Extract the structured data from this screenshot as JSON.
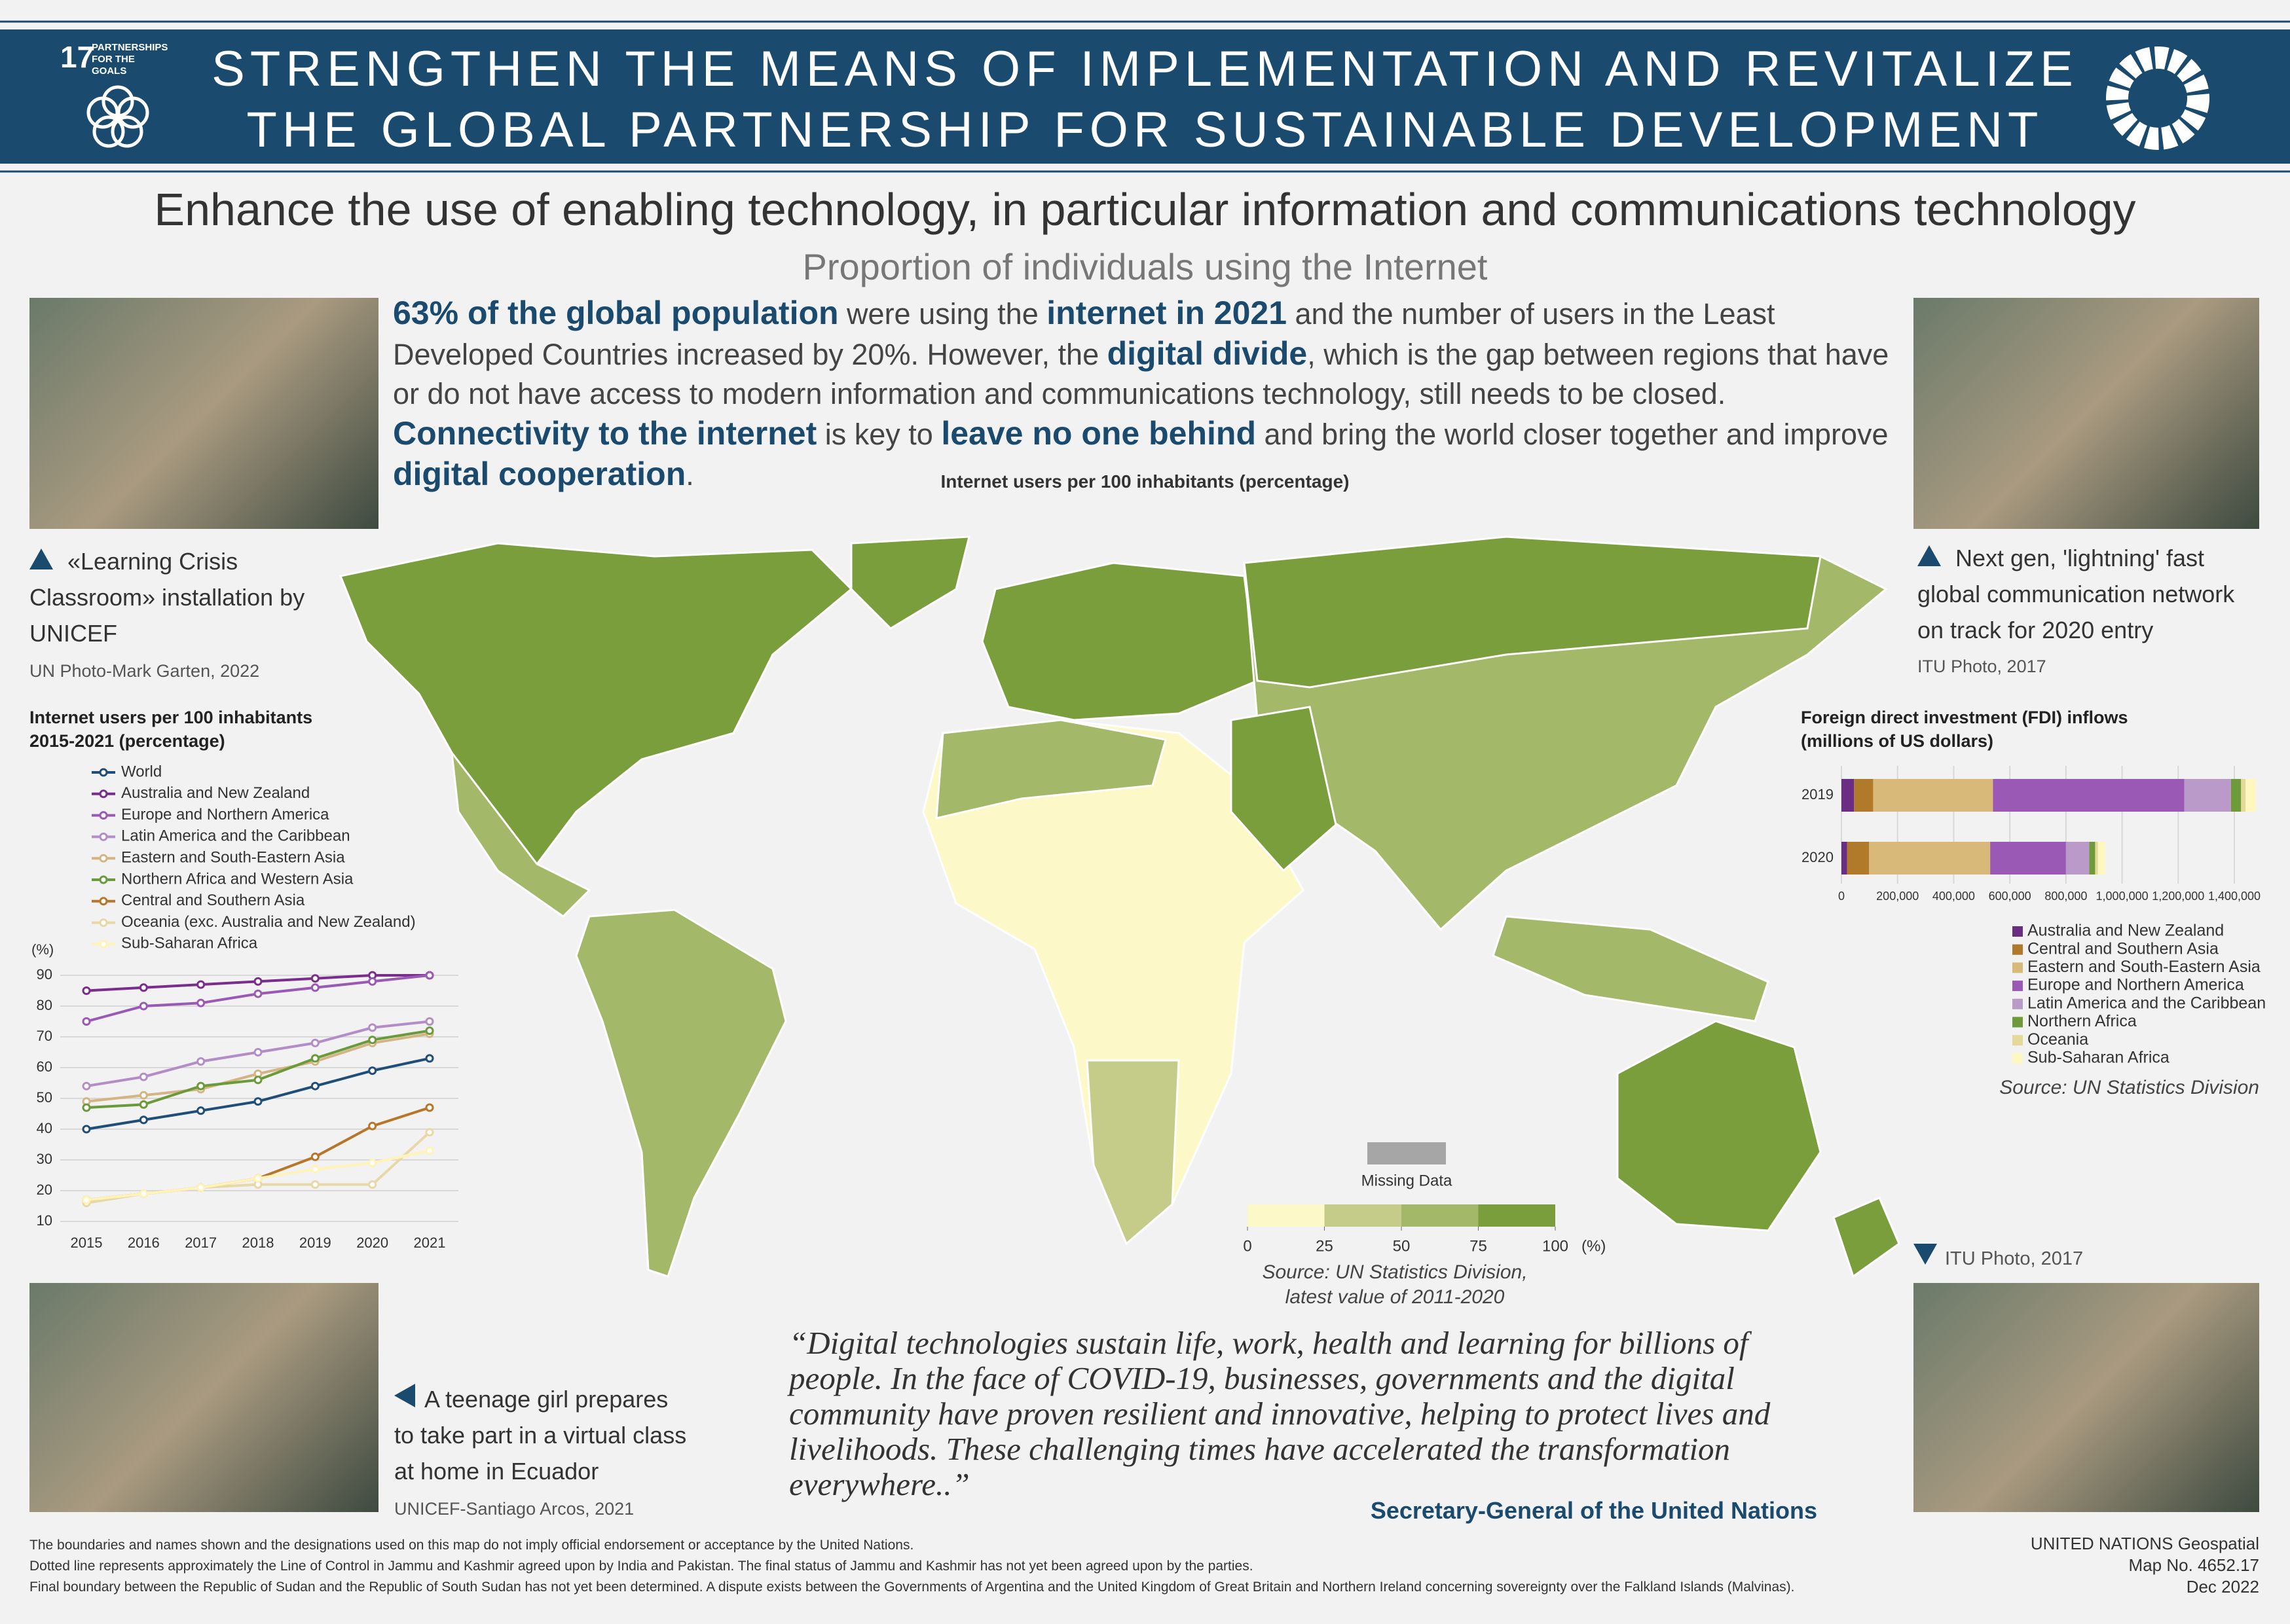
{
  "header": {
    "goal_number": "17",
    "goal_name": "PARTNERSHIPS FOR THE GOALS",
    "title_lines": [
      "STRENGTHEN THE MEANS OF IMPLEMENTATION AND REVITALIZE",
      "THE GLOBAL PARTNERSHIP FOR SUSTAINABLE DEVELOPMENT"
    ]
  },
  "heading": "Enhance the use of enabling technology, in particular information and communications technology",
  "subheading": "Proportion of individuals using the Internet",
  "paragraph": [
    {
      "text": "63% of the global population",
      "bold": true
    },
    {
      "text": " were using the ",
      "bold": false
    },
    {
      "text": "internet in 2021",
      "bold": true
    },
    {
      "text": " and the number of users in the Least Developed Countries increased by 20%. However, the ",
      "bold": false
    },
    {
      "text": "digital divide",
      "bold": true
    },
    {
      "text": ", which is the gap between regions that have or do not have access to modern information and communications technology, still needs to be closed. ",
      "bold": false
    },
    {
      "text": "Connectivity to the internet",
      "bold": true
    },
    {
      "text": " is key to ",
      "bold": false
    },
    {
      "text": "leave no one behind",
      "bold": true
    },
    {
      "text": " and bring the world closer together and improve ",
      "bold": false
    },
    {
      "text": "digital cooperation",
      "bold": true
    },
    {
      "text": ".",
      "bold": false
    }
  ],
  "photos": [
    {
      "caption": "«Learning Crisis Classroom» installation by UNICEF",
      "credit": "UN Photo-Mark Garten, 2022"
    },
    {
      "caption": "Next gen, 'lightning' fast global communication network on track for 2020 entry",
      "credit": "ITU Photo, 2017"
    },
    {
      "caption": "A teenage girl prepares to take part in a virtual class at home in Ecuador",
      "credit": "UNICEF-Santiago Arcos, 2021"
    },
    {
      "caption": "ITU Photo, 2017"
    }
  ],
  "chart_data": [
    {
      "type": "line",
      "title": "Internet users per 100 inhabitants 2015-2021 (percentage)",
      "y_label": "(%)",
      "x": [
        2015,
        2016,
        2017,
        2018,
        2019,
        2020,
        2021
      ],
      "xlim": [
        2015,
        2021
      ],
      "xticks": [
        2015,
        2016,
        2017,
        2018,
        2019,
        2020,
        2021
      ],
      "ylim": [
        10,
        92
      ],
      "yticks": [
        10,
        20,
        30,
        40,
        50,
        60,
        70,
        80,
        90
      ],
      "grid": true,
      "series": [
        {
          "name": "World",
          "color": "#1f4e79",
          "values": [
            40,
            43,
            46,
            49,
            54,
            59,
            63
          ]
        },
        {
          "name": "Australia and New Zealand",
          "color": "#7b2d8e",
          "values": [
            85,
            86,
            87,
            88,
            89,
            90,
            90
          ]
        },
        {
          "name": "Europe and Northern America",
          "color": "#9b59b6",
          "values": [
            75,
            80,
            81,
            84,
            86,
            88,
            90
          ]
        },
        {
          "name": "Latin America and the Caribbean",
          "color": "#b48cc8",
          "values": [
            54,
            57,
            62,
            65,
            68,
            73,
            75
          ]
        },
        {
          "name": "Eastern and South-Eastern Asia",
          "color": "#d4b483",
          "values": [
            49,
            51,
            53,
            58,
            62,
            68,
            71
          ]
        },
        {
          "name": "Northern Africa and Western Asia",
          "color": "#6a9a3a",
          "values": [
            47,
            48,
            54,
            56,
            63,
            69,
            72
          ]
        },
        {
          "name": "Central and Southern Asia",
          "color": "#b8762a",
          "values": [
            17,
            19,
            21,
            24,
            31,
            41,
            47
          ]
        },
        {
          "name": "Oceania (exc. Australia and New Zealand)",
          "color": "#e8d8a8",
          "values": [
            16,
            19,
            21,
            22,
            22,
            22,
            39
          ]
        },
        {
          "name": "Sub-Saharan Africa",
          "color": "#fff3b8",
          "values": [
            17,
            19,
            21,
            24,
            27,
            29,
            33
          ]
        }
      ]
    },
    {
      "type": "stacked-bar-horizontal",
      "title": "Foreign direct investment (FDI) inflows (millions of US dollars)",
      "categories": [
        "2019",
        "2020"
      ],
      "xlim": [
        0,
        1500000
      ],
      "xticks": [
        0,
        {
          "value": 200000,
          "label": "200,000"
        },
        {
          "value": 400000,
          "label": "400,000"
        },
        {
          "value": 600000,
          "label": "600,000"
        },
        {
          "value": 800000,
          "label": "800,000"
        },
        {
          "value": 1000000,
          "label": "1,000,000"
        },
        {
          "value": 1200000,
          "label": "1,200,000"
        },
        {
          "value": 1400000,
          "label": "1,400,000"
        }
      ],
      "grid": true,
      "series": [
        {
          "name": "Australia and New Zealand",
          "color": "#6b2c83",
          "values": [
            45000,
            20000
          ]
        },
        {
          "name": "Central and Southern Asia",
          "color": "#b07a2a",
          "values": [
            68000,
            78000
          ]
        },
        {
          "name": "Eastern and South-Eastern Asia",
          "color": "#d9b97a",
          "values": [
            427000,
            432000
          ]
        },
        {
          "name": "Europe and Northern America",
          "color": "#9b59b6",
          "values": [
            682000,
            270000
          ]
        },
        {
          "name": "Latin America and the Caribbean",
          "color": "#b99ac9",
          "values": [
            166000,
            83000
          ]
        },
        {
          "name": "Northern Africa",
          "color": "#6f9a3a",
          "values": [
            36000,
            21000
          ]
        },
        {
          "name": "Oceania",
          "color": "#e5d99a",
          "values": [
            16000,
            10000
          ]
        },
        {
          "name": "Sub-Saharan Africa",
          "color": "#fff6c0",
          "values": [
            36000,
            26000
          ]
        }
      ],
      "source": "Source: UN Statistics Division"
    }
  ],
  "map": {
    "title": "Internet users per 100 inhabitants (percentage)",
    "breaks": [
      0,
      25,
      50,
      75,
      100
    ],
    "colors": [
      "#fdf8c8",
      "#c5cc8a",
      "#a3b868",
      "#7a9e3c"
    ],
    "unit": "(%)",
    "missing_label": "Missing Data",
    "missing_color": "#a6a6a6",
    "source_lines": [
      "Source: UN Statistics Division,",
      "latest value of 2011-2020"
    ]
  },
  "quote": {
    "text": "“Digital technologies sustain life, work, health and learning for billions of people. In the face of COVID-19, businesses, governments and the digital community have proven resilient and innovative, helping to protect lives and livelihoods. These challenging times have accelerated the transformation everywhere..”",
    "author": "Secretary-General of the United Nations"
  },
  "footer": {
    "notes": [
      "The boundaries and names shown and the designations used on this map do not imply official endorsement or acceptance by the United Nations.",
      "Dotted line represents approximately the Line of Control in Jammu and Kashmir agreed upon by India and Pakistan. The final status of Jammu and Kashmir has not yet been agreed upon by the parties.",
      "Final boundary between the Republic of Sudan and the Republic of South Sudan has not yet been determined. A dispute exists between the Governments of Argentina and the United Kingdom of Great Britain and Northern Ireland concerning sovereignty over the Falkland Islands (Malvinas)."
    ],
    "credit_lines": [
      "UNITED NATIONS Geospatial",
      "Map No. 4652.17",
      "Dec 2022"
    ]
  }
}
